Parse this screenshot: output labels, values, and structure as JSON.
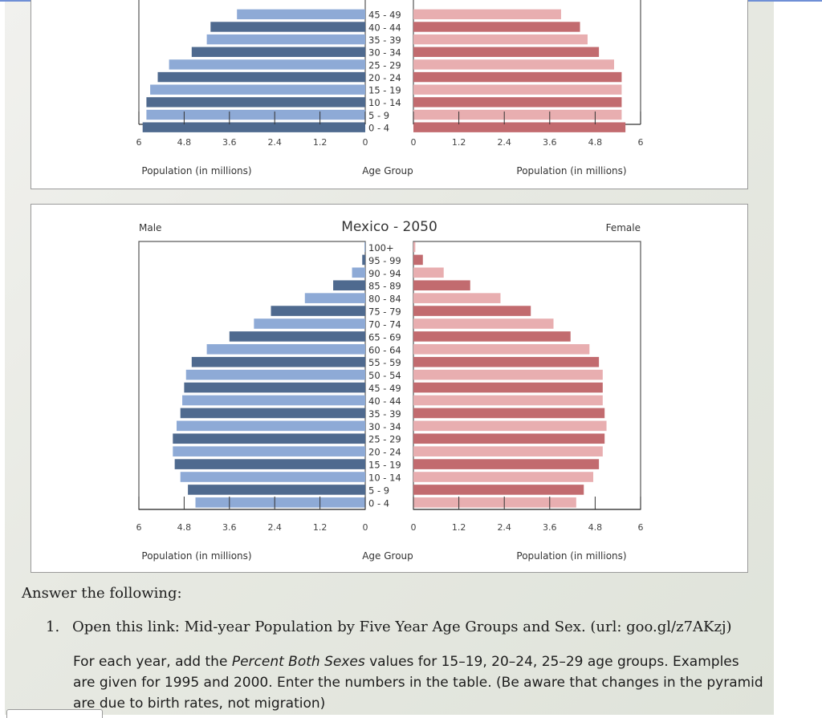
{
  "colors": {
    "male_dark": "#4f6a8f",
    "male_light": "#8eaad6",
    "female_dark": "#c26b6f",
    "female_light": "#e8aeb0"
  },
  "chart_data": [
    {
      "type": "bar",
      "subtype": "population-pyramid",
      "partial": true,
      "title": "",
      "left_label": "",
      "right_label": "",
      "xlabel_left": "Population (in millions)",
      "xlabel_center": "Age Group",
      "xlabel_right": "Population (in millions)",
      "xticks": [
        "6",
        "4.8",
        "3.6",
        "2.4",
        "1.2",
        "0"
      ],
      "xlim": [
        0,
        6
      ],
      "categories": [
        "45 - 49",
        "40 - 44",
        "35 - 39",
        "30 - 34",
        "25 - 29",
        "20 - 24",
        "15 - 19",
        "10 - 14",
        "5 - 9",
        "0 - 4"
      ],
      "series": [
        {
          "name": "Male",
          "values": [
            3.4,
            4.1,
            4.2,
            4.6,
            5.2,
            5.5,
            5.7,
            5.8,
            5.8,
            5.9
          ]
        },
        {
          "name": "Female",
          "values": [
            3.9,
            4.4,
            4.6,
            4.9,
            5.3,
            5.5,
            5.5,
            5.5,
            5.5,
            5.6
          ]
        }
      ]
    },
    {
      "type": "bar",
      "subtype": "population-pyramid",
      "title": "Mexico - 2050",
      "left_label": "Male",
      "right_label": "Female",
      "xlabel_left": "Population (in millions)",
      "xlabel_center": "Age Group",
      "xlabel_right": "Population (in millions)",
      "xticks": [
        "6",
        "4.8",
        "3.6",
        "2.4",
        "1.2",
        "0"
      ],
      "xlim": [
        0,
        6
      ],
      "categories": [
        "100+",
        "95 - 99",
        "90 - 94",
        "85 - 89",
        "80 - 84",
        "75 - 79",
        "70 - 74",
        "65 - 69",
        "60 - 64",
        "55 - 59",
        "50 - 54",
        "45 - 49",
        "40 - 44",
        "35 - 39",
        "30 - 34",
        "25 - 29",
        "20 - 24",
        "15 - 19",
        "10 - 14",
        "5 - 9",
        "0 - 4"
      ],
      "series": [
        {
          "name": "Male",
          "values": [
            0.02,
            0.08,
            0.35,
            0.85,
            1.6,
            2.5,
            2.95,
            3.6,
            4.2,
            4.6,
            4.75,
            4.8,
            4.85,
            4.9,
            5.0,
            5.1,
            5.1,
            5.05,
            4.9,
            4.7,
            4.5
          ]
        },
        {
          "name": "Female",
          "values": [
            0.05,
            0.25,
            0.8,
            1.5,
            2.3,
            3.1,
            3.7,
            4.15,
            4.65,
            4.9,
            5.0,
            5.0,
            5.0,
            5.05,
            5.1,
            5.05,
            5.0,
            4.9,
            4.75,
            4.5,
            4.3
          ]
        }
      ]
    }
  ],
  "question": {
    "heading": "Answer the following:",
    "item_number": "1.",
    "item_text": "Open this link: Mid-year Population by Five Year Age Groups and Sex. (url: goo.gl/z7AKzj)",
    "desc_part1": "For each year, add the ",
    "desc_italic": "Percent Both Sexes",
    "desc_part2": " values for 15–19, 20–24, 25–29 age groups. Examples are given for 1995 and 2000. Enter the numbers in the table. (Be aware that changes in the pyramid are due to birth rates, not migration)"
  }
}
